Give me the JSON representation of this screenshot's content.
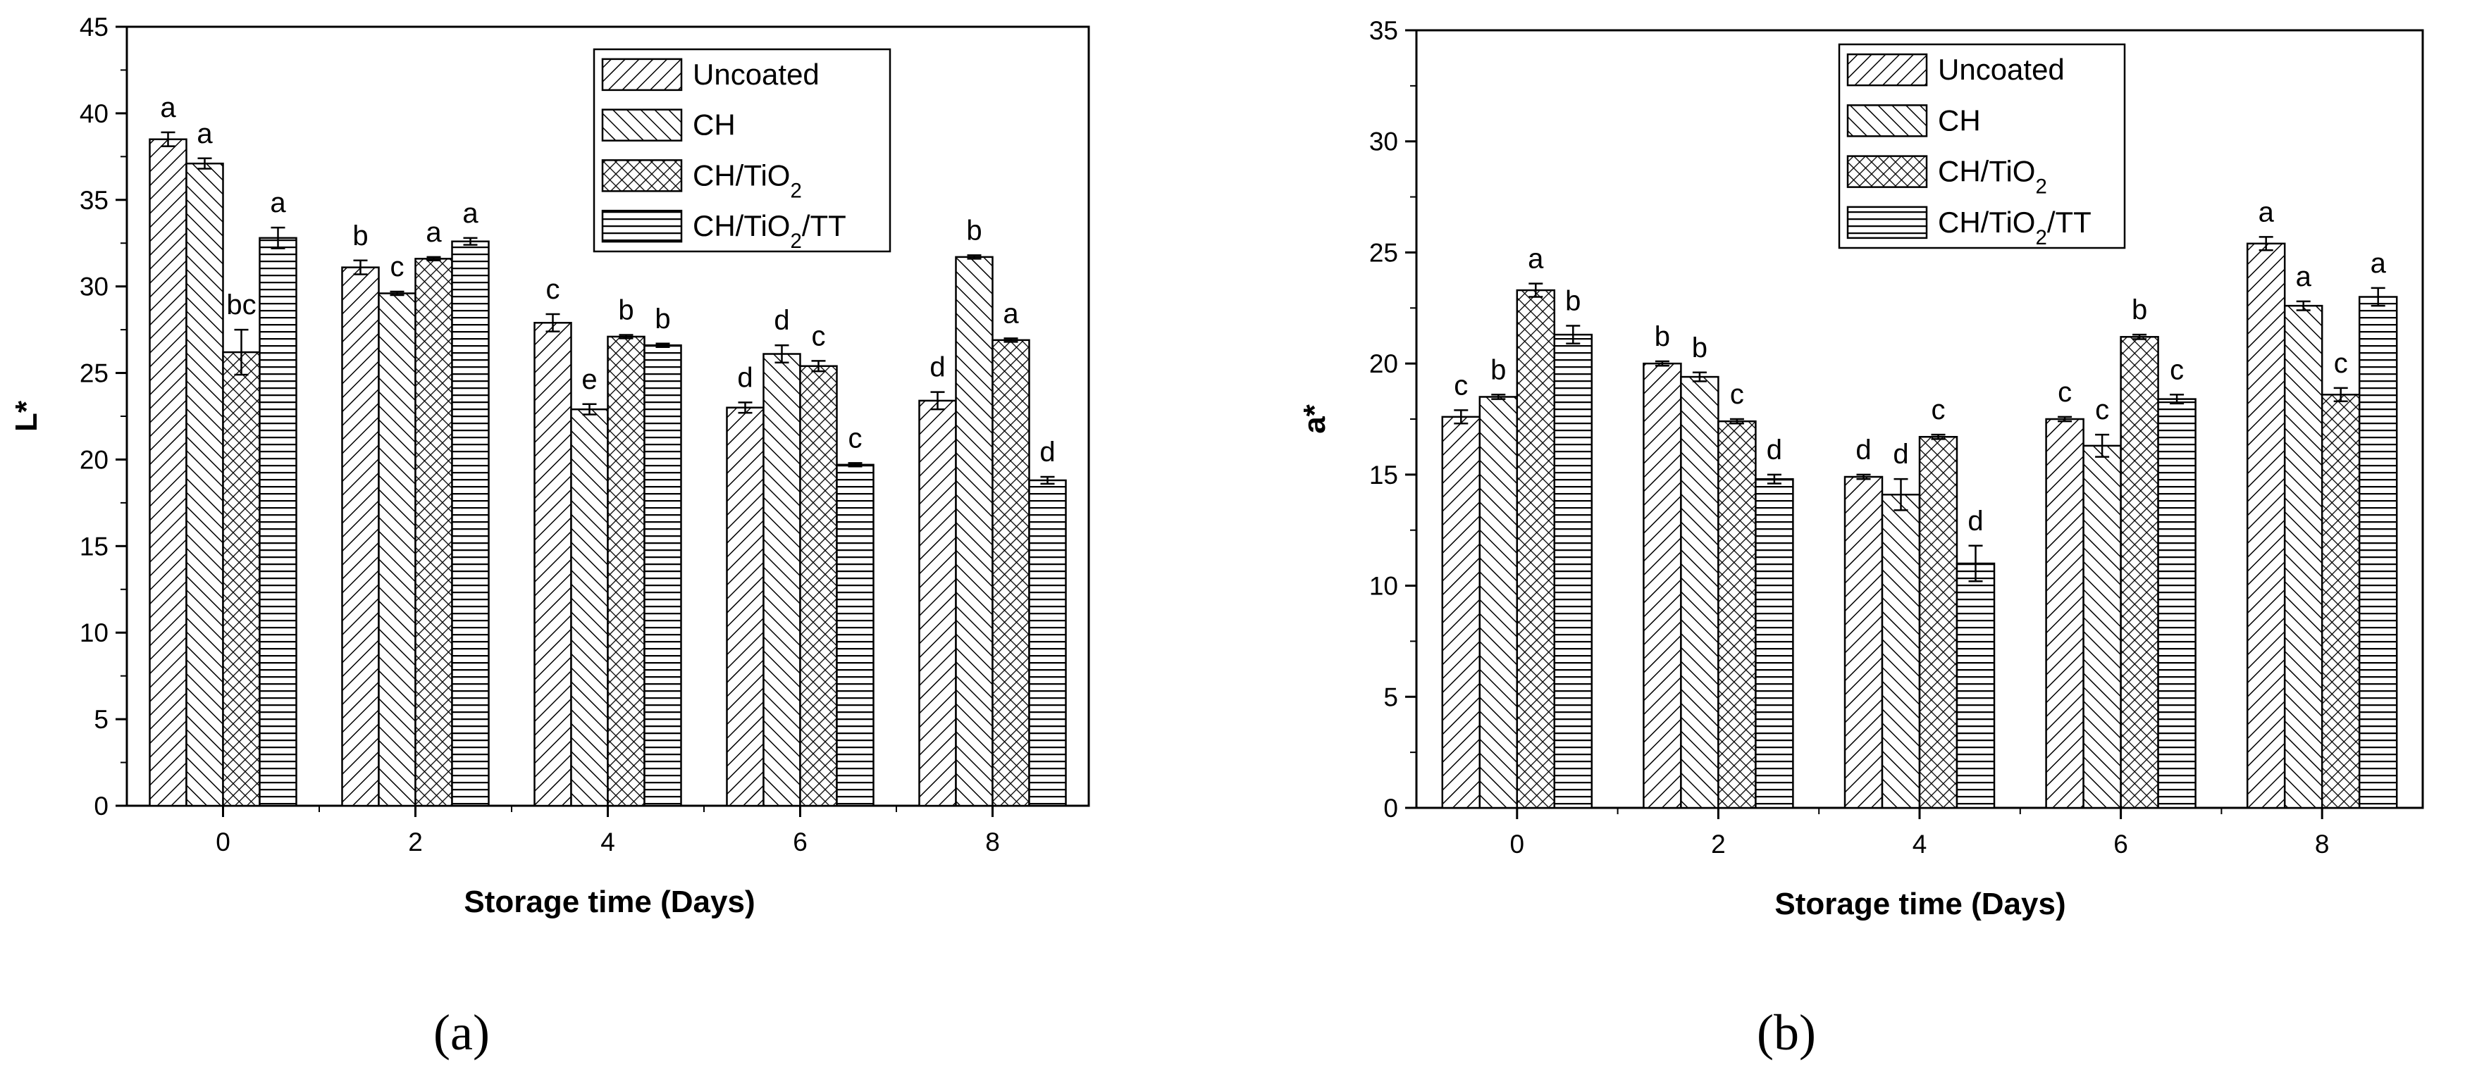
{
  "chart_data": [
    {
      "type": "bar",
      "panel_label": "(a)",
      "ylabel": "L*",
      "xlabel": "Storage time (Days)",
      "ylim": [
        0,
        45
      ],
      "ytick_step": 5,
      "categories": [
        "0",
        "2",
        "4",
        "6",
        "8"
      ],
      "legend_position": "top-right",
      "series": [
        {
          "name": "Uncoated",
          "values": [
            38.5,
            31.1,
            27.9,
            23.0,
            23.4
          ],
          "errors": [
            0.4,
            0.4,
            0.5,
            0.3,
            0.5
          ],
          "letters": [
            "a",
            "b",
            "c",
            "d",
            "d"
          ]
        },
        {
          "name": "CH",
          "values": [
            37.1,
            29.6,
            22.9,
            26.1,
            31.7
          ],
          "errors": [
            0.3,
            0.1,
            0.3,
            0.5,
            0.1
          ],
          "letters": [
            "a",
            "c",
            "e",
            "d",
            "b"
          ]
        },
        {
          "name": "CH/TiO2",
          "values": [
            26.2,
            31.6,
            27.1,
            25.4,
            26.9
          ],
          "errors": [
            1.3,
            0.1,
            0.1,
            0.3,
            0.1
          ],
          "letters": [
            "bc",
            "a",
            "b",
            "c",
            "a"
          ]
        },
        {
          "name": "CH/TiO2/TT",
          "values": [
            32.8,
            32.6,
            26.6,
            19.7,
            18.8
          ],
          "errors": [
            0.6,
            0.2,
            0.1,
            0.1,
            0.2
          ],
          "letters": [
            "a",
            "a",
            "b",
            "c",
            "d"
          ]
        }
      ]
    },
    {
      "type": "bar",
      "panel_label": "(b)",
      "ylabel": "a*",
      "xlabel": "Storage time (Days)",
      "ylim": [
        0,
        35
      ],
      "ytick_step": 5,
      "categories": [
        "0",
        "2",
        "4",
        "6",
        "8"
      ],
      "legend_position": "top-right",
      "series": [
        {
          "name": "Uncoated",
          "values": [
            17.6,
            20.0,
            14.9,
            17.5,
            25.4
          ],
          "errors": [
            0.3,
            0.1,
            0.1,
            0.1,
            0.3
          ],
          "letters": [
            "c",
            "b",
            "d",
            "c",
            "a"
          ]
        },
        {
          "name": "CH",
          "values": [
            18.5,
            19.4,
            14.1,
            16.3,
            22.6
          ],
          "errors": [
            0.1,
            0.2,
            0.7,
            0.5,
            0.2
          ],
          "letters": [
            "b",
            "b",
            "d",
            "c",
            "a"
          ]
        },
        {
          "name": "CH/TiO2",
          "values": [
            23.3,
            17.4,
            16.7,
            21.2,
            18.6
          ],
          "errors": [
            0.3,
            0.1,
            0.1,
            0.1,
            0.3
          ],
          "letters": [
            "a",
            "c",
            "c",
            "b",
            "c"
          ]
        },
        {
          "name": "CH/TiO2/TT",
          "values": [
            21.3,
            14.8,
            11.0,
            18.4,
            23.0
          ],
          "errors": [
            0.4,
            0.2,
            0.8,
            0.2,
            0.4
          ],
          "letters": [
            "b",
            "d",
            "d",
            "c",
            "a"
          ]
        }
      ]
    }
  ]
}
